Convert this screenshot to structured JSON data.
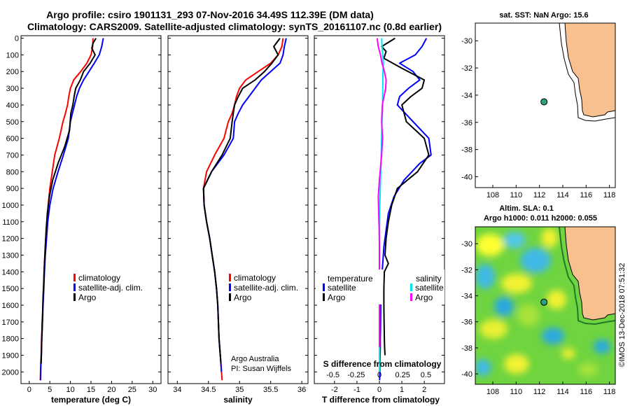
{
  "figure": {
    "title_line1": "Argo profile: csiro 1901131_293 07-Nov-2016 34.49S 112.39E (DM data)",
    "title_line2": "Climatology: CARS2009. Satellite-adjusted climatology: synTS_20161107.nc (0.8d earlier)",
    "credit_line1": "Argo Australia",
    "credit_line2": "PI: Susan Wijffels",
    "imos_stamp": "©IMOS 13-Dec-2018 07:51:32"
  },
  "colors": {
    "climatology": "#ff0000",
    "satellite": "#0000ff",
    "argo": "#000000",
    "salinity_satellite": "#00e5ee",
    "salinity_argo": "#ff00ff",
    "land": "#f9c08f",
    "marker": "#2e9e7e"
  },
  "depth_axis": {
    "ticks": [
      0,
      100,
      200,
      300,
      400,
      500,
      600,
      700,
      800,
      900,
      1000,
      1100,
      1200,
      1300,
      1400,
      1500,
      1600,
      1700,
      1800,
      1900,
      2000
    ],
    "range": [
      -15,
      2070
    ]
  },
  "chart_data": [
    {
      "id": "temperature",
      "type": "line",
      "xlabel": "temperature (deg C)",
      "xticks": [
        0,
        5,
        10,
        15,
        20,
        25,
        30
      ],
      "xlim": [
        -2,
        32
      ],
      "legend": {
        "placement": "bottom-right",
        "entries": [
          "climatology",
          "satellite-adj. clim.",
          "Argo"
        ]
      },
      "series": [
        {
          "name": "climatology",
          "color_key": "climatology",
          "x": [
            15.5,
            15.4,
            15.0,
            14.0,
            12.5,
            10.8,
            10.0,
            9.6,
            9.3,
            8.8,
            8.2,
            7.3,
            6.2,
            5.6,
            5.0,
            4.6,
            4.3,
            4.0,
            3.8,
            3.6,
            3.5,
            3.4,
            3.3,
            3.25,
            3.2,
            3.1,
            3.0,
            2.95,
            2.9,
            2.8,
            2.75,
            2.7
          ],
          "y": [
            0,
            50,
            100,
            150,
            200,
            250,
            300,
            350,
            400,
            450,
            500,
            600,
            700,
            800,
            900,
            1000,
            1100,
            1200,
            1300,
            1400,
            1500,
            1550,
            1600,
            1650,
            1700,
            1750,
            1800,
            1850,
            1900,
            1950,
            2000,
            2050
          ]
        },
        {
          "name": "satellite-adj. clim.",
          "color_key": "satellite",
          "x": [
            18.0,
            17.6,
            17.0,
            15.8,
            14.5,
            13.2,
            12.2,
            11.5,
            11.0,
            10.5,
            10.0,
            9.5,
            8.3,
            7.0,
            5.8,
            5.0,
            4.5,
            4.2,
            3.9,
            3.7,
            3.55,
            3.45,
            3.35,
            3.28,
            3.22,
            3.15,
            3.05,
            3.0,
            2.95,
            2.85,
            2.8,
            2.75
          ],
          "y": [
            0,
            50,
            100,
            150,
            200,
            250,
            300,
            350,
            400,
            450,
            500,
            600,
            700,
            800,
            900,
            1000,
            1100,
            1200,
            1300,
            1400,
            1500,
            1550,
            1600,
            1650,
            1700,
            1750,
            1800,
            1850,
            1900,
            1950,
            2000,
            2050
          ]
        },
        {
          "name": "Argo",
          "color_key": "argo",
          "x": [
            16.2,
            15.5,
            15.2,
            16.0,
            14.8,
            13.2,
            12.4,
            11.3,
            10.9,
            10.6,
            10.1,
            9.8,
            8.6,
            7.0,
            5.7,
            4.9,
            4.4,
            4.1,
            3.9,
            3.7,
            3.55,
            3.45,
            3.35,
            3.3,
            3.25,
            3.15,
            3.05,
            3.0,
            2.95,
            2.9
          ],
          "y": [
            0,
            30,
            60,
            100,
            150,
            200,
            250,
            300,
            350,
            400,
            450,
            550,
            650,
            750,
            850,
            950,
            1050,
            1150,
            1250,
            1350,
            1450,
            1500,
            1550,
            1600,
            1650,
            1700,
            1800,
            1850,
            1900,
            1950
          ]
        }
      ]
    },
    {
      "id": "salinity",
      "type": "line",
      "xlabel": "salinity",
      "xticks": [
        34,
        34.5,
        35,
        35.5,
        36
      ],
      "xlim": [
        33.85,
        36.1
      ],
      "legend": {
        "placement": "bottom-right",
        "entries": [
          "climatology",
          "satellite-adj. clim.",
          "Argo"
        ]
      },
      "series": [
        {
          "name": "climatology",
          "color_key": "climatology",
          "x": [
            35.7,
            35.68,
            35.62,
            35.5,
            35.3,
            35.1,
            35.0,
            34.95,
            34.92,
            34.88,
            34.82,
            34.75,
            34.6,
            34.47,
            34.42,
            34.43,
            34.47,
            34.52,
            34.56,
            34.6,
            34.63,
            34.65,
            34.66,
            34.67,
            34.68,
            34.69,
            34.7,
            34.71,
            34.72
          ],
          "y": [
            0,
            50,
            100,
            150,
            200,
            250,
            300,
            350,
            400,
            450,
            500,
            600,
            700,
            800,
            900,
            1000,
            1100,
            1200,
            1300,
            1400,
            1500,
            1600,
            1700,
            1800,
            1850,
            1900,
            1950,
            2000,
            2050
          ]
        },
        {
          "name": "satellite-adj. clim.",
          "color_key": "satellite",
          "x": [
            35.75,
            35.72,
            35.7,
            35.65,
            35.5,
            35.35,
            35.25,
            35.15,
            35.05,
            34.98,
            34.92,
            34.9,
            34.75,
            34.55,
            34.42,
            34.43,
            34.47,
            34.52,
            34.56,
            34.6,
            34.63,
            34.65,
            34.66,
            34.67,
            34.68,
            34.69,
            34.7,
            34.71
          ],
          "y": [
            0,
            50,
            100,
            150,
            200,
            250,
            300,
            350,
            400,
            450,
            500,
            600,
            700,
            800,
            900,
            1000,
            1100,
            1200,
            1300,
            1400,
            1500,
            1600,
            1700,
            1800,
            1850,
            1900,
            1950,
            2000
          ]
        },
        {
          "name": "Argo",
          "color_key": "argo",
          "x": [
            35.65,
            35.55,
            35.62,
            35.52,
            35.4,
            35.25,
            35.05,
            34.98,
            34.92,
            34.9,
            34.88,
            34.85,
            34.72,
            34.55,
            34.42,
            34.43,
            34.47,
            34.52,
            34.56,
            34.6,
            34.63,
            34.65,
            34.66,
            34.67,
            34.68,
            34.69,
            34.7
          ],
          "y": [
            0,
            50,
            100,
            150,
            200,
            250,
            300,
            350,
            400,
            450,
            500,
            600,
            700,
            800,
            900,
            1000,
            1100,
            1200,
            1300,
            1400,
            1500,
            1600,
            1700,
            1800,
            1850,
            1900,
            1950
          ]
        }
      ]
    },
    {
      "id": "difference",
      "type": "line",
      "xlabel": "T difference from climatology",
      "xlabel_top": "S difference from climatology",
      "xticks": [
        -2,
        -1,
        0,
        1,
        2
      ],
      "xticks_top": [
        -0.5,
        -0.25,
        0,
        0.25,
        0.5
      ],
      "xticks_top_labels": [
        "-0.5",
        "-0.25",
        "0",
        "0.25",
        "0.5"
      ],
      "xlim": [
        -2.9,
        2.9
      ],
      "legend": {
        "placement": "bottom",
        "temperature_header": "temperature",
        "salinity_header": "salinity",
        "entries_left": [
          "satellite",
          "Argo"
        ],
        "entries_right": [
          "satellite",
          "Argo"
        ]
      },
      "series": [
        {
          "name": "satellite",
          "group": "temperature",
          "color_key": "satellite",
          "x": [
            2.1,
            1.9,
            1.6,
            0.9,
            1.5,
            1.8,
            1.3,
            0.9,
            0.8,
            1.5,
            2.2,
            2.3,
            1.8,
            1.1,
            0.65,
            0.4,
            0.3,
            0.2,
            0.15,
            0.1,
            0.07,
            0.06,
            0.05,
            0.04,
            0.04,
            0.03,
            0.02,
            0.02,
            0.01
          ],
          "y": [
            0,
            50,
            100,
            150,
            200,
            250,
            300,
            350,
            400,
            500,
            600,
            700,
            750,
            850,
            950,
            1050,
            1150,
            1250,
            1350,
            1450,
            1550,
            1650,
            1750,
            1800,
            1850,
            1900,
            1950,
            2000,
            2050
          ]
        },
        {
          "name": "Argo",
          "group": "temperature",
          "color_key": "argo",
          "x": [
            0.7,
            0.1,
            0.3,
            0.2,
            1.0,
            2.0,
            1.9,
            1.4,
            1.0,
            1.2,
            2.0,
            2.2,
            1.7,
            0.8,
            0.55,
            0.4,
            0.3,
            0.25,
            0.4,
            0.22,
            0.2,
            0.2,
            0.21,
            0.22,
            0.23,
            0.25
          ],
          "y": [
            0,
            50,
            80,
            120,
            180,
            250,
            300,
            350,
            400,
            500,
            600,
            700,
            800,
            900,
            1000,
            1100,
            1200,
            1300,
            1350,
            1400,
            1500,
            1600,
            1700,
            1800,
            1850,
            1900
          ]
        },
        {
          "name": "satellite",
          "group": "salinity",
          "color_key": "salinity_satellite",
          "x": [
            0.1,
            0.12,
            0.15,
            0.18,
            0.16,
            0.15,
            0.14,
            0.12,
            0.1,
            0.08,
            0.06,
            0.04,
            0.02,
            0.01,
            0.0,
            0.0,
            0.0,
            0.0,
            0.0,
            0.0,
            0.0,
            0.0,
            0.0,
            0.0,
            0.0
          ],
          "y": [
            0,
            50,
            100,
            150,
            200,
            300,
            400,
            500,
            600,
            700,
            800,
            900,
            1000,
            1100,
            1200,
            1300,
            1400,
            1500,
            1600,
            1700,
            1800,
            1850,
            1900,
            1950,
            2000
          ]
        },
        {
          "name": "Argo",
          "group": "salinity",
          "color_key": "salinity_argo",
          "x": [
            -0.1,
            -0.05,
            0.05,
            0.12,
            0.22,
            0.3,
            0.28,
            0.13,
            0.1,
            0.14,
            0.1,
            0.0,
            -0.05,
            -0.03,
            -0.01,
            0.0,
            0.0,
            0.0,
            0.0,
            0.0,
            0.0,
            0.0
          ],
          "y": [
            0,
            50,
            100,
            150,
            200,
            250,
            300,
            400,
            500,
            600,
            700,
            850,
            950,
            1050,
            1150,
            1250,
            1350,
            1450,
            1550,
            1650,
            1750,
            1850
          ]
        }
      ]
    }
  ],
  "maps": {
    "sst": {
      "title": "sat. SST: NaN Argo: 15.6",
      "xticks": [
        108,
        110,
        112,
        114,
        116,
        118
      ],
      "yticks": [
        -30,
        -32,
        -34,
        -36,
        -38,
        -40
      ],
      "xlim": [
        106.5,
        118.5
      ],
      "ylim": [
        -40.8,
        -28.7
      ],
      "marker": [
        112.39,
        -34.49
      ]
    },
    "sla": {
      "title_line1": "Altim. SLA: 0.1",
      "title_line2": "Argo h1000: 0.011 h2000: 0.055",
      "xticks": [
        108,
        110,
        112,
        114,
        116,
        118
      ],
      "yticks": [
        -30,
        -32,
        -34,
        -36,
        -38,
        -40
      ],
      "xlim": [
        106.5,
        118.5
      ],
      "ylim": [
        -40.8,
        -28.7
      ],
      "marker": [
        112.39,
        -34.49
      ]
    }
  }
}
